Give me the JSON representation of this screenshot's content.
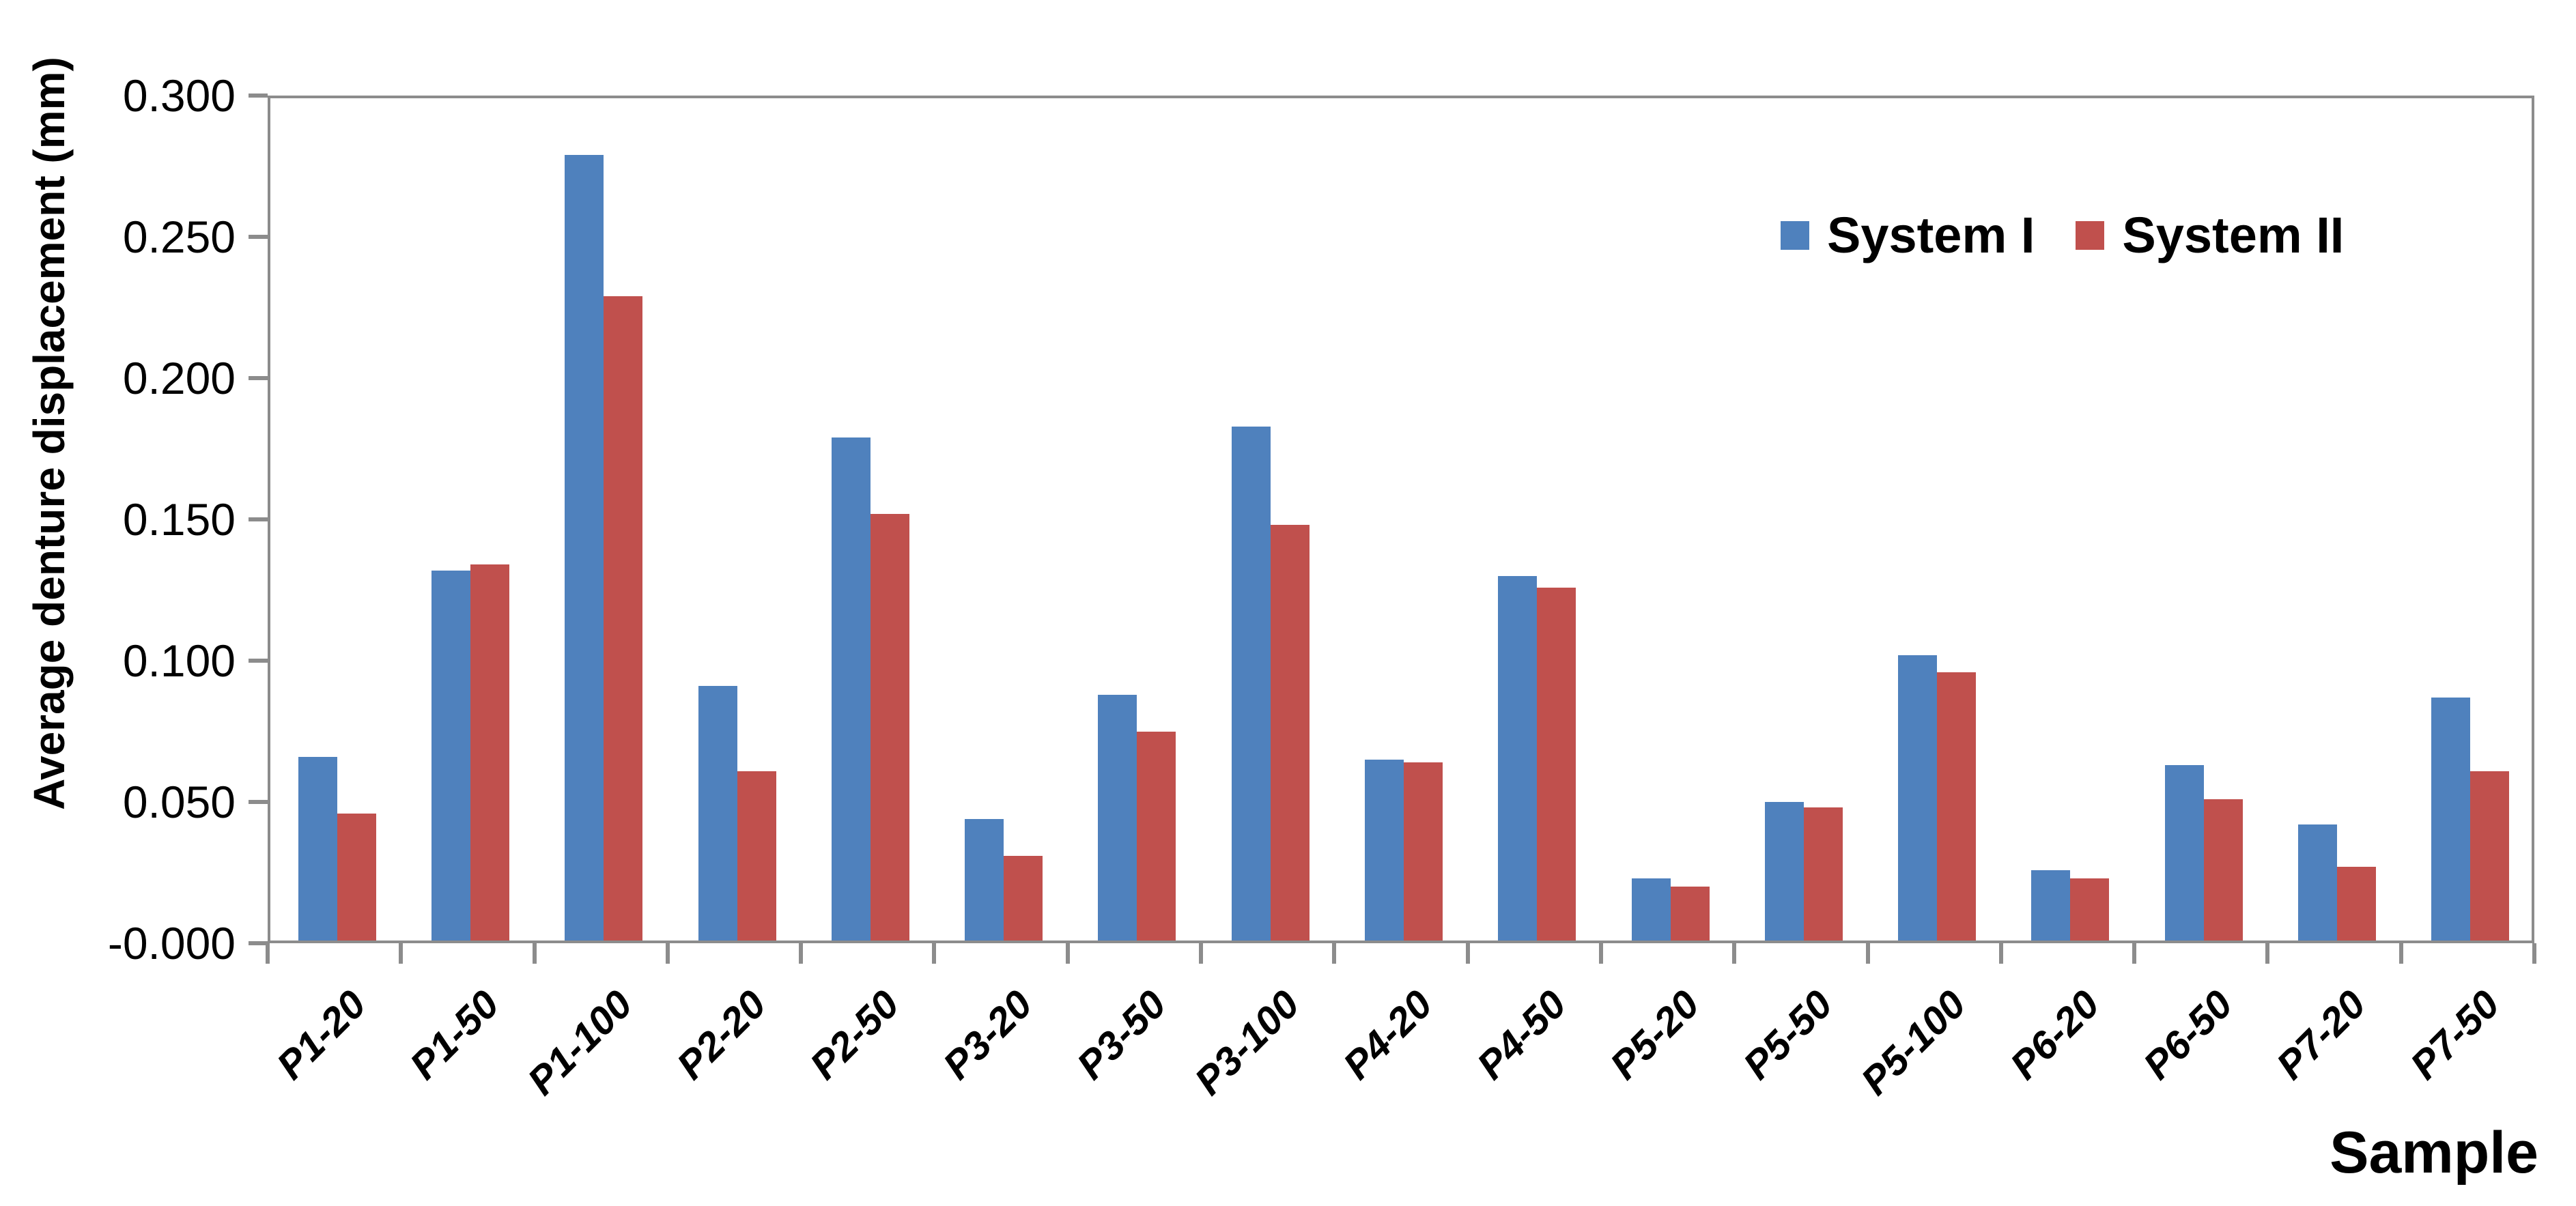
{
  "chart_data": {
    "type": "bar",
    "title": "",
    "xlabel": "Sample",
    "ylabel": "Average denture displacement (mm)",
    "ylim": [
      0,
      0.3
    ],
    "ytick_step": 0.05,
    "ytick_decimals": 3,
    "grid": false,
    "legend_position": "top-right-inside",
    "categories": [
      "P1-20",
      "P1-50",
      "P1-100",
      "P2-20",
      "P2-50",
      "P3-20",
      "P3-50",
      "P3-100",
      "P4-20",
      "P4-50",
      "P5-20",
      "P5-50",
      "P5-100",
      "P6-20",
      "P6-50",
      "P7-20",
      "P7-50"
    ],
    "series": [
      {
        "name": "System I",
        "color": "#4F81BD",
        "values": [
          0.065,
          0.131,
          0.278,
          0.09,
          0.178,
          0.043,
          0.087,
          0.182,
          0.064,
          0.129,
          0.022,
          0.049,
          0.101,
          0.025,
          0.062,
          0.041,
          0.086
        ]
      },
      {
        "name": "System II",
        "color": "#C0504D",
        "values": [
          0.045,
          0.133,
          0.228,
          0.06,
          0.151,
          0.03,
          0.074,
          0.147,
          0.063,
          0.125,
          0.019,
          0.047,
          0.095,
          0.022,
          0.05,
          0.026,
          0.06
        ]
      }
    ]
  },
  "style": {
    "axis_line_color": "#8C8C8C",
    "text_color": "#000000",
    "background_color": "#ffffff"
  }
}
